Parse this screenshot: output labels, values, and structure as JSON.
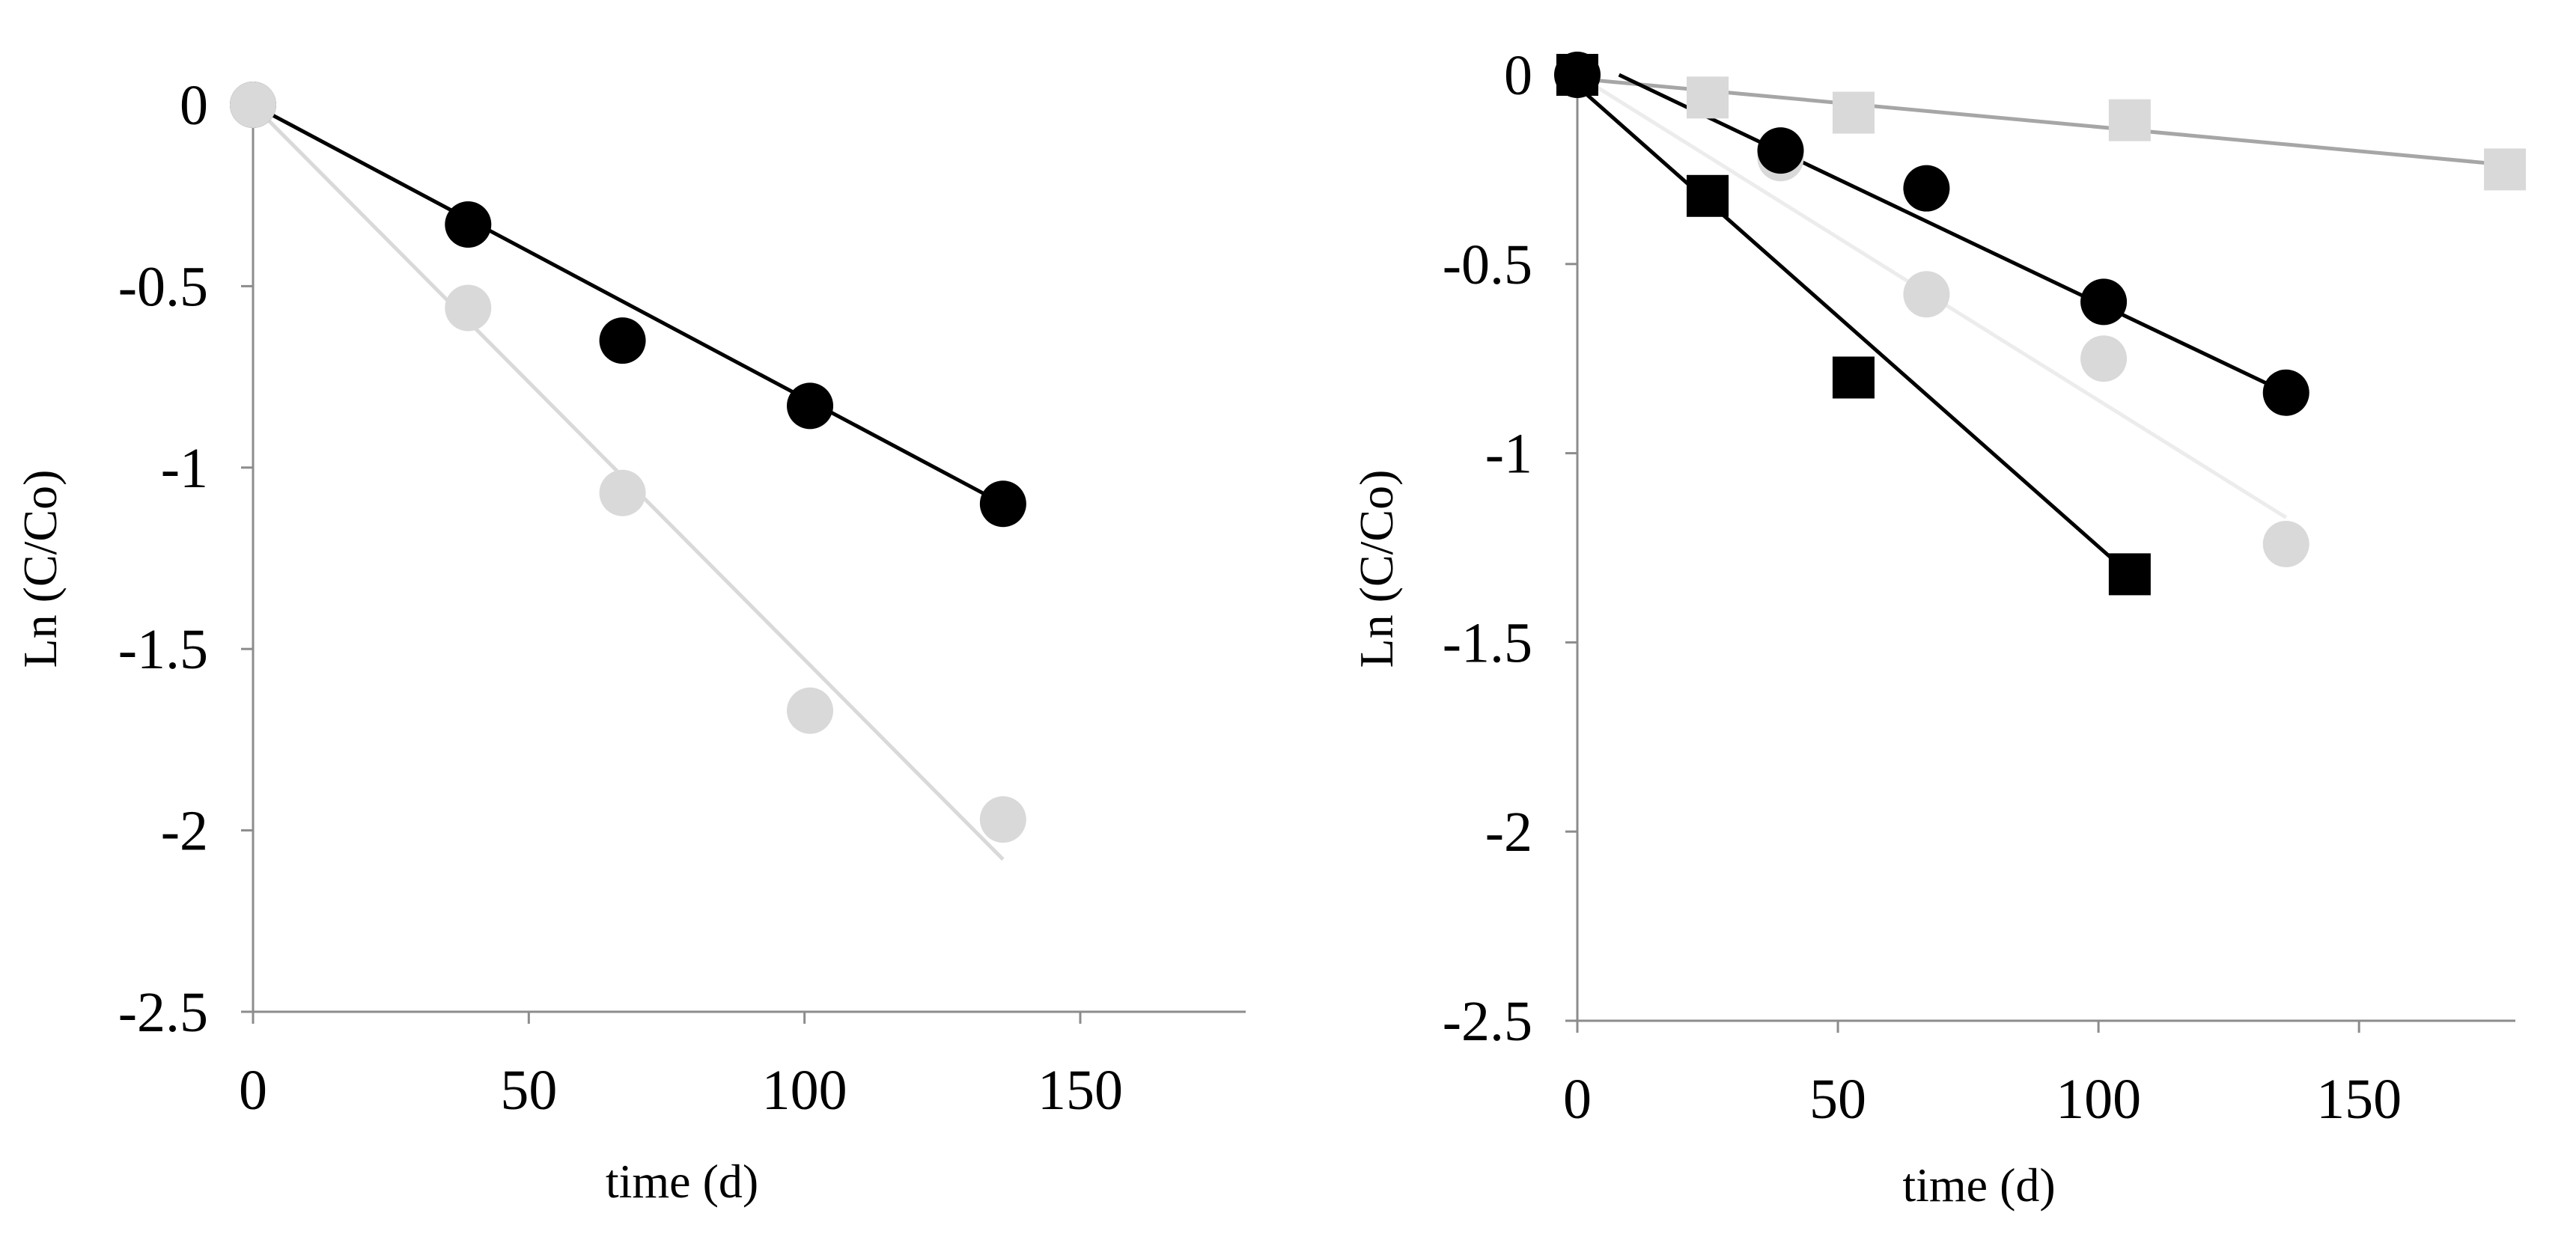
{
  "chart_data": [
    {
      "type": "scatter",
      "xlabel": "time (d)",
      "ylabel": "Ln (C/Co)",
      "xlim": [
        0,
        180
      ],
      "ylim": [
        -2.5,
        0
      ],
      "x_ticks": [
        "0",
        "50",
        "100",
        "150"
      ],
      "y_ticks": [
        "0",
        "-0.5",
        "-1",
        "-1.5",
        "-2",
        "-2.5"
      ],
      "x_tick_values": [
        0,
        50,
        100,
        150
      ],
      "y_tick_values": [
        0,
        -0.5,
        -1,
        -1.5,
        -2,
        -2.5
      ],
      "series": [
        {
          "name": "black circles",
          "marker": "circle",
          "color": "#000000",
          "line_color": "#000000",
          "x": [
            0,
            39,
            67,
            101,
            136
          ],
          "y": [
            0,
            -0.33,
            -0.65,
            -0.83,
            -1.1
          ],
          "fit": {
            "x": [
              0,
              136
            ],
            "y": [
              0,
              -1.1
            ]
          }
        },
        {
          "name": "gray circles",
          "marker": "circle",
          "color": "#d9d9d9",
          "line_color": "#d9d9d9",
          "x": [
            0,
            39,
            67,
            101,
            136
          ],
          "y": [
            0,
            -0.56,
            -1.07,
            -1.67,
            -1.97
          ],
          "fit": {
            "x": [
              0,
              136
            ],
            "y": [
              0,
              -2.08
            ]
          }
        }
      ]
    },
    {
      "type": "scatter",
      "xlabel": "time (d)",
      "ylabel": "Ln (C/Co)",
      "xlim": [
        0,
        180
      ],
      "ylim": [
        -2.5,
        0
      ],
      "x_ticks": [
        "0",
        "50",
        "100",
        "150"
      ],
      "y_ticks": [
        "0",
        "-0.5",
        "-1",
        "-1.5",
        "-2",
        "-2.5"
      ],
      "x_tick_values": [
        0,
        50,
        100,
        150
      ],
      "y_tick_values": [
        0,
        -0.5,
        -1,
        -1.5,
        -2,
        -2.5
      ],
      "series": [
        {
          "name": "light gray squares",
          "marker": "square",
          "color": "#d9d9d9",
          "line_color": "#a6a6a6",
          "x": [
            0,
            25,
            53,
            106,
            178
          ],
          "y": [
            0,
            -0.06,
            -0.1,
            -0.12,
            -0.25
          ],
          "fit": {
            "x": [
              0,
              180
            ],
            "y": [
              -0.01,
              -0.24
            ]
          }
        },
        {
          "name": "light gray circles",
          "marker": "circle",
          "color": "#d9d9d9",
          "line_color": "#ececec",
          "x": [
            0,
            39,
            67,
            101,
            136
          ],
          "y": [
            0,
            -0.22,
            -0.58,
            -0.75,
            -1.24
          ],
          "fit": {
            "x": [
              0,
              136
            ],
            "y": [
              0,
              -1.17
            ]
          }
        },
        {
          "name": "black circles",
          "marker": "circle",
          "color": "#000000",
          "line_color": "#000000",
          "x": [
            0,
            39,
            67,
            101,
            136
          ],
          "y": [
            0,
            -0.2,
            -0.3,
            -0.6,
            -0.84
          ],
          "fit": {
            "x": [
              8,
              136
            ],
            "y": [
              0,
              -0.84
            ]
          }
        },
        {
          "name": "black squares",
          "marker": "square",
          "color": "#000000",
          "line_color": "#000000",
          "x": [
            0,
            25,
            53,
            106
          ],
          "y": [
            0,
            -0.32,
            -0.8,
            -1.32
          ],
          "fit": {
            "x": [
              0,
              106
            ],
            "y": [
              -0.03,
              -1.32
            ]
          }
        }
      ]
    }
  ]
}
